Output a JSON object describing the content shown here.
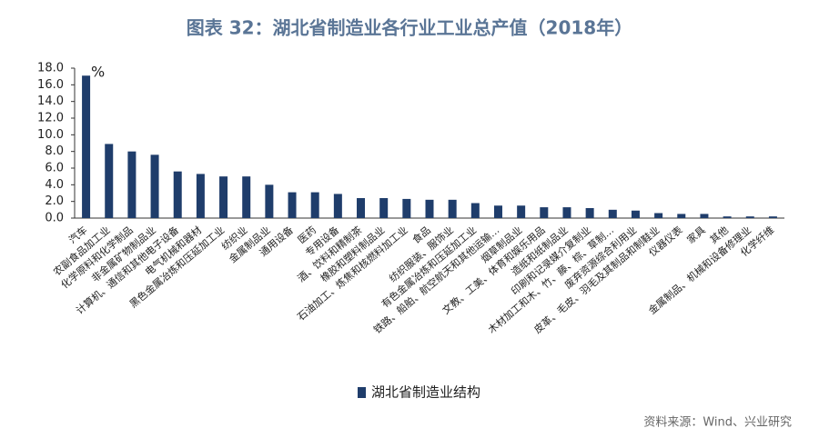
{
  "chart_data": {
    "type": "bar",
    "title": "图表 32：湖北省制造业各行业工业总产值（2018年）",
    "unit": "%",
    "source": "资料来源：Wind、兴业研究",
    "categories": [
      "汽车",
      "农副食品加工业",
      "化学原料和化学制品",
      "非金属矿物制品业",
      "计算机、通信和其他电子设备",
      "电气机械和器材",
      "黑色金属冶炼和压延加工业",
      "纺织业",
      "金属制品业",
      "通用设备",
      "医药",
      "专用设备",
      "酒、饮料和精制茶",
      "橡胶和塑料制品业",
      "石油加工、炼焦和核燃料加工业",
      "食品",
      "纺织服装、服饰业",
      "有色金属冶炼和压延加工业",
      "铁路、船舶、航空航天和其他运输…",
      "烟草制品业",
      "文教、工美、体育和娱乐用品",
      "造纸和纸制品业",
      "印刷和记录媒介复制业",
      "木材加工和木、竹、藤、棕、草制…",
      "废弃资源综合利用业",
      "皮革、毛皮、羽毛及其制品和制鞋业",
      "仪器仪表",
      "家具",
      "其他",
      "金属制品、机械和设备修理业",
      "化学纤维"
    ],
    "series": [
      {
        "name": "湖北省制造业结构",
        "color": "#1f3d6b",
        "values": [
          17.1,
          8.9,
          8.0,
          7.6,
          5.6,
          5.3,
          5.0,
          5.0,
          4.0,
          3.1,
          3.1,
          2.9,
          2.4,
          2.4,
          2.3,
          2.2,
          2.2,
          1.8,
          1.5,
          1.5,
          1.3,
          1.3,
          1.2,
          1.0,
          0.9,
          0.6,
          0.5,
          0.5,
          0.2,
          0.2,
          0.2
        ]
      }
    ],
    "ylim": [
      0,
      18
    ],
    "yticks": [
      {
        "value": 0,
        "label": "0.0"
      },
      {
        "value": 2,
        "label": "2.0"
      },
      {
        "value": 4,
        "label": "4.0"
      },
      {
        "value": 6,
        "label": "6.0"
      },
      {
        "value": 8,
        "label": "8.0"
      },
      {
        "value": 10,
        "label": "10.0"
      },
      {
        "value": 12,
        "label": "12.0"
      },
      {
        "value": 14,
        "label": "14.0"
      },
      {
        "value": 16,
        "label": "16.0"
      },
      {
        "value": 18,
        "label": "18.0"
      }
    ],
    "grid": false,
    "legend": "bottom-left"
  }
}
